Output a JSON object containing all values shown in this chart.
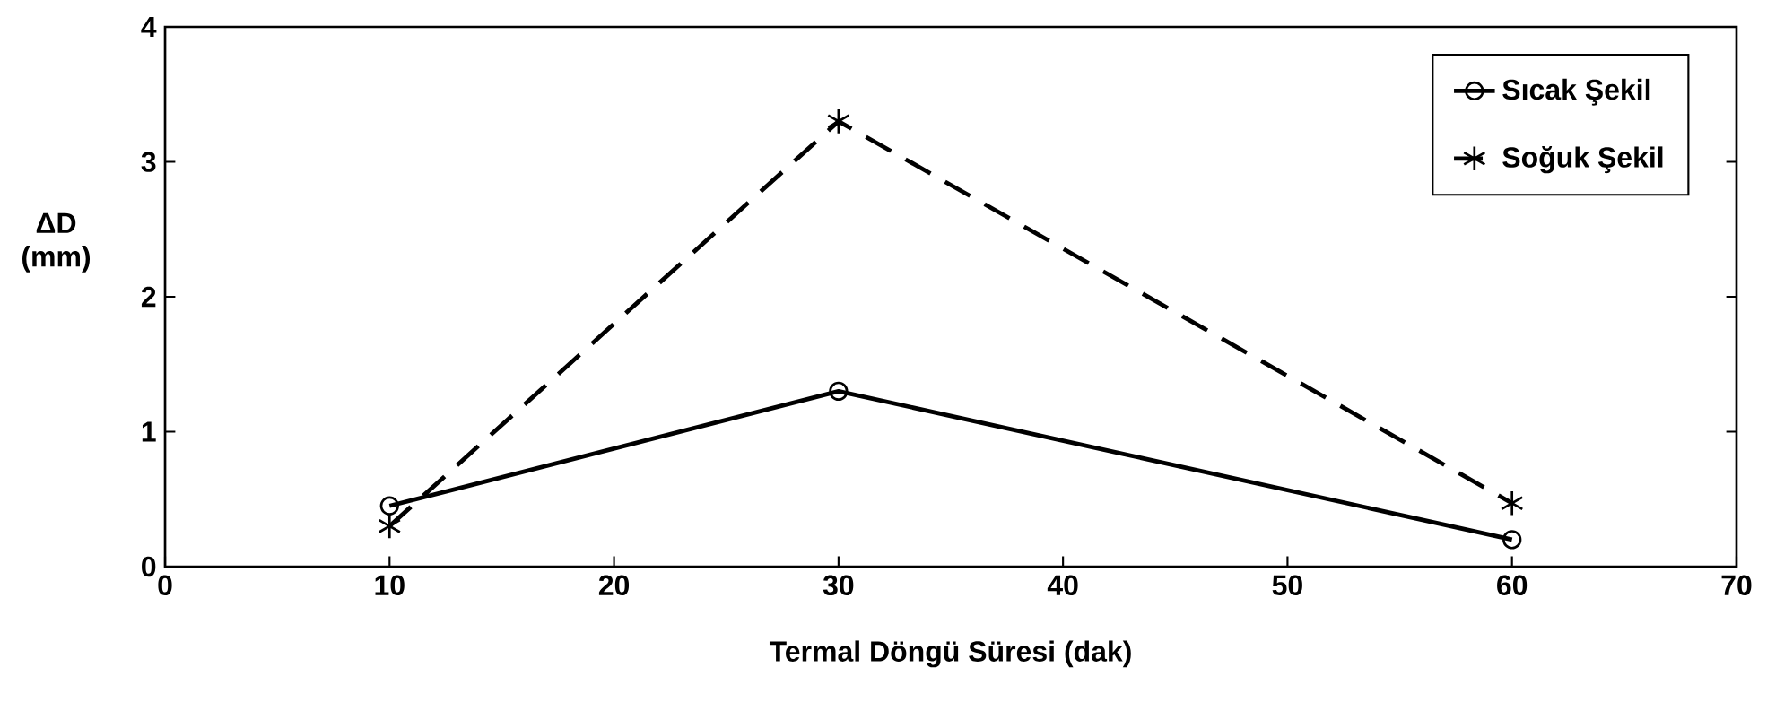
{
  "chart_data": {
    "type": "line",
    "xlabel": "Termal Döngü Süresi (dak)",
    "ylabel": "ΔD (mm)",
    "x": [
      10,
      30,
      60
    ],
    "series": [
      {
        "name": "Sıcak Şekil",
        "color": "#000000",
        "values": [
          0.45,
          1.3,
          0.2
        ],
        "marker": "circle",
        "line_style": "solid"
      },
      {
        "name": "Soğuk Şekil",
        "color": "#000000",
        "values": [
          0.3,
          3.3,
          0.47
        ],
        "marker": "cross",
        "line_style": "dashed"
      }
    ],
    "xlim": [
      0,
      70
    ],
    "xticks": [
      0,
      10,
      20,
      30,
      40,
      50,
      60,
      70
    ],
    "ylim": [
      0,
      4
    ],
    "yticks": [
      0,
      1,
      2,
      3,
      4
    ],
    "grid": false,
    "legend": "top right"
  }
}
